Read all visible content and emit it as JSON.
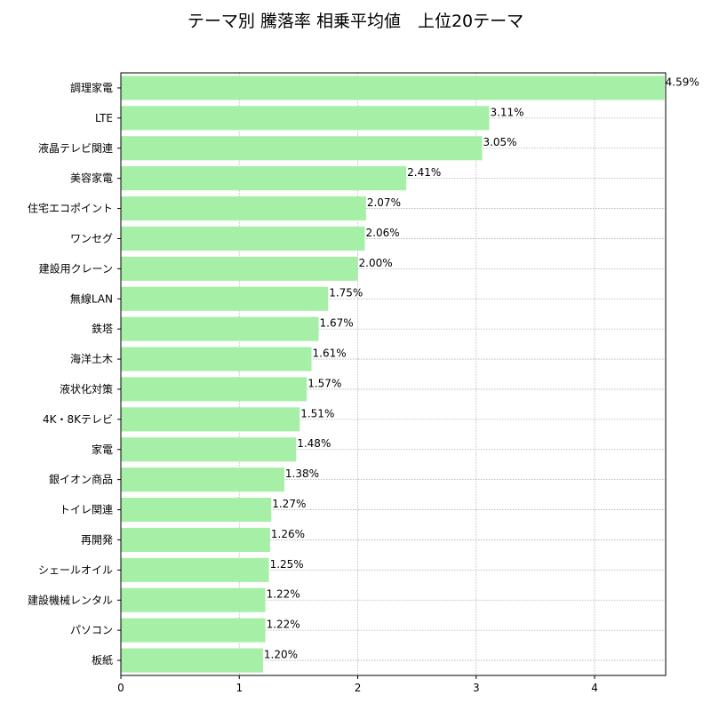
{
  "chart_data": {
    "type": "bar",
    "orientation": "horizontal",
    "title": "テーマ別 騰落率 相乗平均値　上位20テーマ",
    "categories": [
      "調理家電",
      "LTE",
      "液晶テレビ関連",
      "美容家電",
      "住宅エコポイント",
      "ワンセグ",
      "建設用クレーン",
      "無線LAN",
      "鉄塔",
      "海洋土木",
      "液状化対策",
      "4K・8Kテレビ",
      "家電",
      "銀イオン商品",
      "トイレ関連",
      "再開発",
      "シェールオイル",
      "建設機械レンタル",
      "パソコン",
      "板紙"
    ],
    "values": [
      4.59,
      3.11,
      3.05,
      2.41,
      2.07,
      2.06,
      2.0,
      1.75,
      1.67,
      1.61,
      1.57,
      1.51,
      1.48,
      1.38,
      1.27,
      1.26,
      1.25,
      1.22,
      1.22,
      1.2
    ],
    "value_labels": [
      "4.59%",
      "3.11%",
      "3.05%",
      "2.41%",
      "2.07%",
      "2.06%",
      "2.00%",
      "1.75%",
      "1.67%",
      "1.61%",
      "1.57%",
      "1.51%",
      "1.48%",
      "1.38%",
      "1.27%",
      "1.26%",
      "1.25%",
      "1.22%",
      "1.22%",
      "1.20%"
    ],
    "xlim": [
      0,
      4.6
    ],
    "xticks": [
      "0",
      "1",
      "2",
      "3",
      "4"
    ],
    "xlabel": "",
    "ylabel": "",
    "grid": true,
    "bar_color": "#a6efa6"
  }
}
